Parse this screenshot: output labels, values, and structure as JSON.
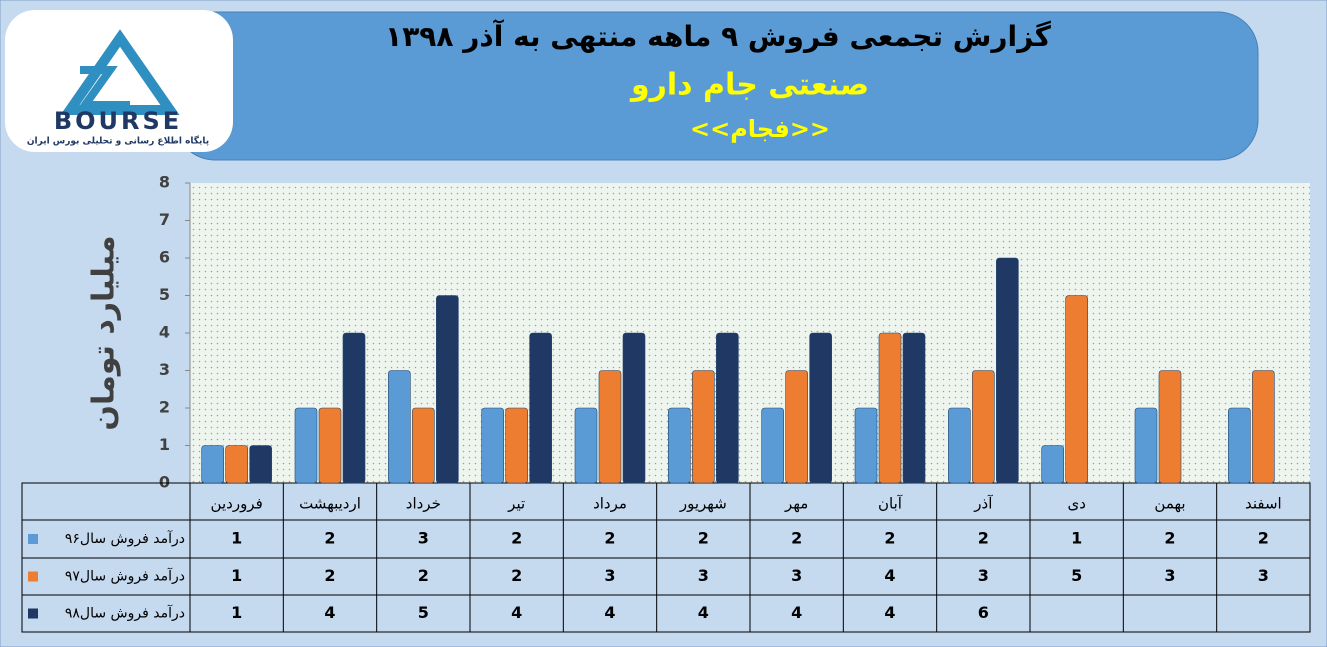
{
  "chart_data": {
    "type": "bar",
    "title": "گزارش تجمعی فروش ۹ ماهه منتهی به آذر ۱۳۹۸",
    "subtitle": "صنعتی جام دارو",
    "symbol": "<<فجام>>",
    "y_label": "میلیارد تومان",
    "logo": {
      "text": "BOURSE",
      "caption": "پایگاه اطلاع رسانی و تحلیلی بورس ایران"
    },
    "categories": [
      "فروردین",
      "اردیبهشت",
      "خرداد",
      "تیر",
      "مرداد",
      "شهریور",
      "مهر",
      "آبان",
      "آذر",
      "دی",
      "بهمن",
      "اسفند"
    ],
    "series": [
      {
        "name": "درآمد فروش سال۹۶",
        "color": "#5b9bd5",
        "values": [
          1,
          2,
          3,
          2,
          2,
          2,
          2,
          2,
          2,
          1,
          2,
          2
        ]
      },
      {
        "name": "درآمد فروش سال۹۷",
        "color": "#ed7d31",
        "values": [
          1,
          2,
          2,
          2,
          3,
          3,
          3,
          4,
          3,
          5,
          3,
          3
        ]
      },
      {
        "name": "درآمد فروش سال۹۸",
        "color": "#1f3864",
        "values": [
          1,
          4,
          5,
          4,
          4,
          4,
          4,
          4,
          6,
          null,
          null,
          null
        ]
      }
    ],
    "ylim": [
      0,
      8
    ],
    "yticks": [
      0,
      1,
      2,
      3,
      4,
      5,
      6,
      7,
      8
    ]
  }
}
